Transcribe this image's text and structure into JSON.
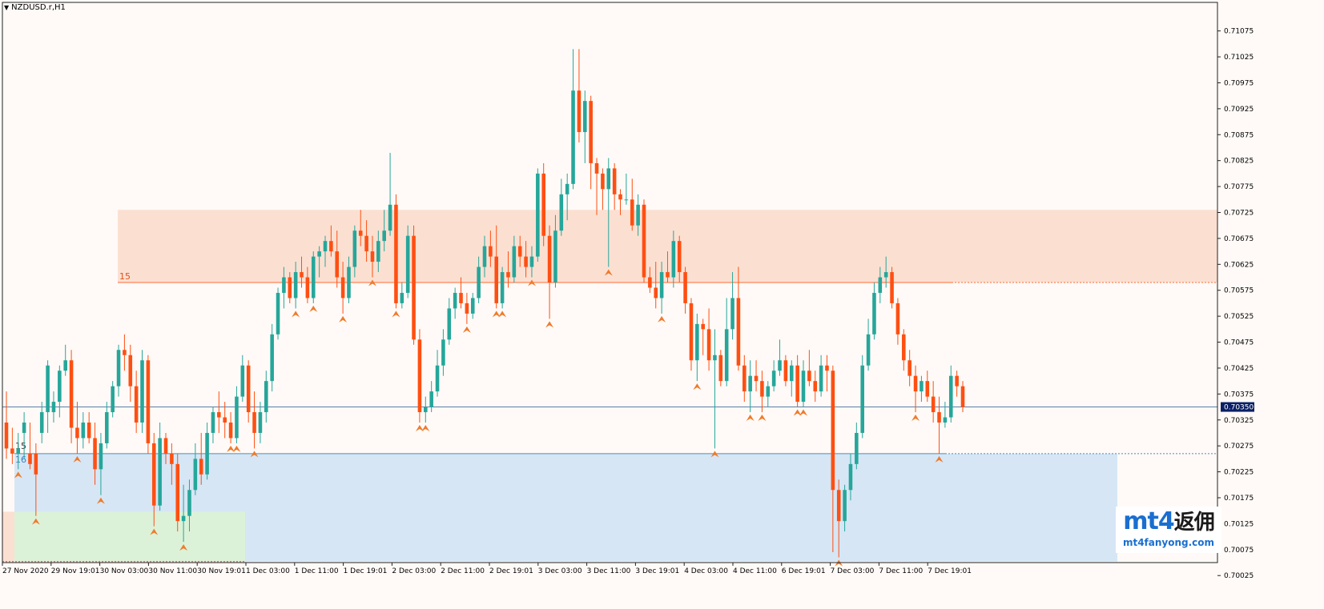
{
  "window": {
    "title": "NZDUSD.r,H1",
    "current_price": "0.70350"
  },
  "zones": {
    "supply_label": "15",
    "demand_label_top": "15",
    "demand_label_bottom": "16"
  },
  "logo": {
    "main_text": "mt4",
    "cn_text": "返佣",
    "sub_text": "mt4fanyong.com"
  },
  "colors": {
    "bull": "#26a69a",
    "bear": "#fe4f12",
    "supply_zone": "#fbe0d2",
    "demand_zone": "#d6e6f5",
    "green_zone": "#dcf2d8",
    "resistance_line": "#ff6a36",
    "support_line": "#4a8fb8",
    "price_line": "#5a7fa8",
    "background": "#fffaf7"
  },
  "chart_data": {
    "type": "candlestick",
    "symbol": "NZDUSD.r",
    "timeframe": "H1",
    "ylim": [
      0.7005,
      0.7113
    ],
    "y_ticks": [
      "0.71075",
      "0.71025",
      "0.70975",
      "0.70925",
      "0.70875",
      "0.70825",
      "0.70775",
      "0.70725",
      "0.70675",
      "0.70625",
      "0.70575",
      "0.70525",
      "0.70475",
      "0.70425",
      "0.70375",
      "0.70325",
      "0.70275",
      "0.70225",
      "0.70175",
      "0.70125",
      "0.70075",
      "0.70025"
    ],
    "x_labels": [
      "27 Nov 2020",
      "29 Nov 19:01",
      "30 Nov 03:00",
      "30 Nov 11:00",
      "30 Nov 19:01",
      "1 Dec 03:00",
      "1 Dec 11:00",
      "1 Dec 19:01",
      "2 Dec 03:00",
      "2 Dec 11:00",
      "2 Dec 19:01",
      "3 Dec 03:00",
      "3 Dec 11:00",
      "3 Dec 19:01",
      "4 Dec 03:00",
      "4 Dec 11:00",
      "6 Dec 19:01",
      "7 Dec 03:00",
      "7 Dec 11:00",
      "7 Dec 19:01"
    ],
    "levels": {
      "resistance": 0.7059,
      "support": 0.7026,
      "last_price": 0.7035
    },
    "ohlc": [
      [
        0.7032,
        0.7038,
        0.7025,
        0.7027
      ],
      [
        0.7027,
        0.7031,
        0.7024,
        0.7026
      ],
      [
        0.7026,
        0.703,
        0.7023,
        0.7027
      ],
      [
        0.703,
        0.7034,
        0.7025,
        0.7032
      ],
      [
        0.7026,
        0.7032,
        0.7023,
        0.7024
      ],
      [
        0.7026,
        0.7028,
        0.7014,
        0.7022
      ],
      [
        0.703,
        0.7036,
        0.7028,
        0.7034
      ],
      [
        0.7034,
        0.7044,
        0.703,
        0.7043
      ],
      [
        0.7034,
        0.7038,
        0.7032,
        0.7036
      ],
      [
        0.7036,
        0.7043,
        0.7033,
        0.7042
      ],
      [
        0.7042,
        0.7047,
        0.7041,
        0.7044
      ],
      [
        0.7044,
        0.7046,
        0.7028,
        0.7031
      ],
      [
        0.7031,
        0.7036,
        0.7026,
        0.7029
      ],
      [
        0.7029,
        0.7034,
        0.7027,
        0.7032
      ],
      [
        0.7032,
        0.7034,
        0.7028,
        0.7029
      ],
      [
        0.7029,
        0.7032,
        0.702,
        0.7023
      ],
      [
        0.7023,
        0.703,
        0.7018,
        0.7028
      ],
      [
        0.7028,
        0.7036,
        0.7027,
        0.7034
      ],
      [
        0.7034,
        0.704,
        0.7033,
        0.7039
      ],
      [
        0.7039,
        0.7047,
        0.7037,
        0.7046
      ],
      [
        0.7046,
        0.7049,
        0.7042,
        0.7045
      ],
      [
        0.7045,
        0.7047,
        0.7036,
        0.7039
      ],
      [
        0.7039,
        0.7042,
        0.703,
        0.7032
      ],
      [
        0.7032,
        0.7046,
        0.703,
        0.7044
      ],
      [
        0.7044,
        0.7045,
        0.7026,
        0.7028
      ],
      [
        0.7028,
        0.703,
        0.7012,
        0.7016
      ],
      [
        0.7016,
        0.7032,
        0.7015,
        0.7029
      ],
      [
        0.7029,
        0.703,
        0.7024,
        0.7026
      ],
      [
        0.7026,
        0.7028,
        0.702,
        0.7024
      ],
      [
        0.7024,
        0.7026,
        0.7011,
        0.7013
      ],
      [
        0.7013,
        0.702,
        0.7009,
        0.7014
      ],
      [
        0.7014,
        0.7021,
        0.7011,
        0.7019
      ],
      [
        0.7019,
        0.7028,
        0.7018,
        0.7025
      ],
      [
        0.7025,
        0.703,
        0.702,
        0.7022
      ],
      [
        0.7022,
        0.7032,
        0.7021,
        0.703
      ],
      [
        0.703,
        0.7035,
        0.7028,
        0.7034
      ],
      [
        0.7034,
        0.7038,
        0.703,
        0.7033
      ],
      [
        0.7033,
        0.7036,
        0.7029,
        0.7032
      ],
      [
        0.7032,
        0.7034,
        0.7028,
        0.7029
      ],
      [
        0.7029,
        0.7039,
        0.7028,
        0.7037
      ],
      [
        0.7037,
        0.7045,
        0.7036,
        0.7043
      ],
      [
        0.7043,
        0.7044,
        0.7032,
        0.7034
      ],
      [
        0.7034,
        0.7038,
        0.7027,
        0.703
      ],
      [
        0.703,
        0.7036,
        0.7028,
        0.7034
      ],
      [
        0.7034,
        0.7042,
        0.7032,
        0.704
      ],
      [
        0.704,
        0.7051,
        0.7038,
        0.7049
      ],
      [
        0.7049,
        0.7058,
        0.7048,
        0.7057
      ],
      [
        0.7057,
        0.7062,
        0.7054,
        0.706
      ],
      [
        0.706,
        0.7061,
        0.7055,
        0.7056
      ],
      [
        0.7056,
        0.7063,
        0.7054,
        0.7061
      ],
      [
        0.7061,
        0.7064,
        0.7058,
        0.706
      ],
      [
        0.706,
        0.7062,
        0.7055,
        0.7056
      ],
      [
        0.7056,
        0.7065,
        0.7055,
        0.7064
      ],
      [
        0.7064,
        0.7066,
        0.706,
        0.7065
      ],
      [
        0.7065,
        0.7068,
        0.7062,
        0.7067
      ],
      [
        0.7067,
        0.707,
        0.7064,
        0.7065
      ],
      [
        0.7065,
        0.7069,
        0.7058,
        0.706
      ],
      [
        0.706,
        0.7063,
        0.7053,
        0.7056
      ],
      [
        0.7056,
        0.7064,
        0.7055,
        0.7062
      ],
      [
        0.7062,
        0.707,
        0.706,
        0.7069
      ],
      [
        0.7069,
        0.7073,
        0.7066,
        0.7068
      ],
      [
        0.7068,
        0.7071,
        0.7063,
        0.7065
      ],
      [
        0.7065,
        0.7068,
        0.706,
        0.7063
      ],
      [
        0.7063,
        0.7069,
        0.7061,
        0.7067
      ],
      [
        0.7067,
        0.7073,
        0.7065,
        0.7069
      ],
      [
        0.7069,
        0.7084,
        0.7068,
        0.7074
      ],
      [
        0.7074,
        0.7076,
        0.7054,
        0.7055
      ],
      [
        0.7055,
        0.7059,
        0.7054,
        0.7057
      ],
      [
        0.7057,
        0.707,
        0.7056,
        0.7068
      ],
      [
        0.7068,
        0.707,
        0.7047,
        0.7048
      ],
      [
        0.7048,
        0.705,
        0.7032,
        0.7034
      ],
      [
        0.7034,
        0.7037,
        0.7032,
        0.7035
      ],
      [
        0.7035,
        0.704,
        0.7034,
        0.7038
      ],
      [
        0.7038,
        0.7046,
        0.7037,
        0.7043
      ],
      [
        0.7043,
        0.705,
        0.7041,
        0.7048
      ],
      [
        0.7048,
        0.7056,
        0.7047,
        0.7054
      ],
      [
        0.7054,
        0.7058,
        0.7052,
        0.7057
      ],
      [
        0.7057,
        0.706,
        0.7054,
        0.7055
      ],
      [
        0.7055,
        0.7057,
        0.7051,
        0.7053
      ],
      [
        0.7053,
        0.7057,
        0.7052,
        0.7056
      ],
      [
        0.7056,
        0.7064,
        0.7055,
        0.7062
      ],
      [
        0.7062,
        0.7068,
        0.706,
        0.7066
      ],
      [
        0.7066,
        0.7069,
        0.7062,
        0.7064
      ],
      [
        0.7064,
        0.707,
        0.7054,
        0.7055
      ],
      [
        0.7055,
        0.7062,
        0.7054,
        0.7061
      ],
      [
        0.7061,
        0.7065,
        0.7058,
        0.706
      ],
      [
        0.706,
        0.7068,
        0.7059,
        0.7066
      ],
      [
        0.7066,
        0.7068,
        0.7062,
        0.7064
      ],
      [
        0.7064,
        0.7067,
        0.706,
        0.7062
      ],
      [
        0.7062,
        0.7066,
        0.706,
        0.7064
      ],
      [
        0.7064,
        0.7081,
        0.7063,
        0.708
      ],
      [
        0.708,
        0.7082,
        0.7066,
        0.7068
      ],
      [
        0.7068,
        0.707,
        0.7052,
        0.7059
      ],
      [
        0.7059,
        0.7072,
        0.7058,
        0.7069
      ],
      [
        0.7069,
        0.7079,
        0.7068,
        0.7076
      ],
      [
        0.7076,
        0.708,
        0.7071,
        0.7078
      ],
      [
        0.7078,
        0.7104,
        0.7077,
        0.7096
      ],
      [
        0.7096,
        0.7104,
        0.7086,
        0.7088
      ],
      [
        0.7088,
        0.7096,
        0.7082,
        0.7094
      ],
      [
        0.7094,
        0.7095,
        0.7077,
        0.7082
      ],
      [
        0.7082,
        0.7083,
        0.7072,
        0.708
      ],
      [
        0.708,
        0.7081,
        0.7073,
        0.7077
      ],
      [
        0.7077,
        0.7083,
        0.7062,
        0.7081
      ],
      [
        0.7081,
        0.7082,
        0.7073,
        0.7076
      ],
      [
        0.7076,
        0.7077,
        0.7072,
        0.7075
      ],
      [
        0.7075,
        0.708,
        0.7074,
        0.7075
      ],
      [
        0.7075,
        0.7079,
        0.7069,
        0.707
      ],
      [
        0.707,
        0.7076,
        0.7068,
        0.7074
      ],
      [
        0.7074,
        0.7075,
        0.7059,
        0.706
      ],
      [
        0.706,
        0.7062,
        0.7057,
        0.7058
      ],
      [
        0.7058,
        0.7063,
        0.7054,
        0.7056
      ],
      [
        0.7056,
        0.7063,
        0.7053,
        0.7061
      ],
      [
        0.7061,
        0.7065,
        0.7059,
        0.706
      ],
      [
        0.706,
        0.7069,
        0.7058,
        0.7067
      ],
      [
        0.7067,
        0.7068,
        0.7059,
        0.7061
      ],
      [
        0.7061,
        0.7062,
        0.7053,
        0.7055
      ],
      [
        0.7055,
        0.7056,
        0.7042,
        0.7044
      ],
      [
        0.7044,
        0.7053,
        0.704,
        0.7051
      ],
      [
        0.7051,
        0.7052,
        0.7045,
        0.705
      ],
      [
        0.705,
        0.7054,
        0.7042,
        0.7044
      ],
      [
        0.7044,
        0.705,
        0.7027,
        0.7045
      ],
      [
        0.7045,
        0.7046,
        0.7039,
        0.704
      ],
      [
        0.704,
        0.7056,
        0.7039,
        0.705
      ],
      [
        0.705,
        0.7061,
        0.7048,
        0.7056
      ],
      [
        0.7056,
        0.7062,
        0.7042,
        0.7043
      ],
      [
        0.7043,
        0.7045,
        0.7036,
        0.7038
      ],
      [
        0.7038,
        0.7044,
        0.7034,
        0.7041
      ],
      [
        0.7041,
        0.7044,
        0.7038,
        0.704
      ],
      [
        0.704,
        0.7042,
        0.7034,
        0.7037
      ],
      [
        0.7037,
        0.704,
        0.7035,
        0.7039
      ],
      [
        0.7039,
        0.7044,
        0.7038,
        0.7042
      ],
      [
        0.7042,
        0.7048,
        0.7041,
        0.7044
      ],
      [
        0.7044,
        0.7045,
        0.7039,
        0.704
      ],
      [
        0.704,
        0.7044,
        0.7037,
        0.7043
      ],
      [
        0.7043,
        0.7045,
        0.7035,
        0.7036
      ],
      [
        0.7036,
        0.7044,
        0.7035,
        0.7042
      ],
      [
        0.7042,
        0.7046,
        0.7039,
        0.704
      ],
      [
        0.704,
        0.7042,
        0.7036,
        0.7038
      ],
      [
        0.7038,
        0.7045,
        0.7037,
        0.7043
      ],
      [
        0.7043,
        0.7045,
        0.7038,
        0.7042
      ],
      [
        0.7042,
        0.7043,
        0.7007,
        0.7019
      ],
      [
        0.7019,
        0.7021,
        0.7006,
        0.7013
      ],
      [
        0.7013,
        0.702,
        0.7011,
        0.7019
      ],
      [
        0.7019,
        0.7026,
        0.7017,
        0.7024
      ],
      [
        0.7024,
        0.7032,
        0.7023,
        0.703
      ],
      [
        0.703,
        0.7045,
        0.7029,
        0.7043
      ],
      [
        0.7043,
        0.7052,
        0.7042,
        0.7049
      ],
      [
        0.7049,
        0.7059,
        0.7048,
        0.7057
      ],
      [
        0.7057,
        0.7062,
        0.7055,
        0.706
      ],
      [
        0.706,
        0.7064,
        0.7058,
        0.7061
      ],
      [
        0.7061,
        0.7062,
        0.7054,
        0.7055
      ],
      [
        0.7055,
        0.7056,
        0.7047,
        0.7049
      ],
      [
        0.7049,
        0.705,
        0.7042,
        0.7044
      ],
      [
        0.7044,
        0.7046,
        0.7039,
        0.7041
      ],
      [
        0.7041,
        0.7043,
        0.7034,
        0.7038
      ],
      [
        0.7038,
        0.7041,
        0.7036,
        0.704
      ],
      [
        0.704,
        0.7042,
        0.7036,
        0.7037
      ],
      [
        0.7037,
        0.704,
        0.7032,
        0.7034
      ],
      [
        0.7034,
        0.7037,
        0.7026,
        0.7032
      ],
      [
        0.7032,
        0.7036,
        0.7031,
        0.7033
      ],
      [
        0.7033,
        0.7043,
        0.7032,
        0.7041
      ],
      [
        0.7041,
        0.7042,
        0.7037,
        0.7039
      ],
      [
        0.7039,
        0.704,
        0.7034,
        0.7035
      ]
    ]
  }
}
